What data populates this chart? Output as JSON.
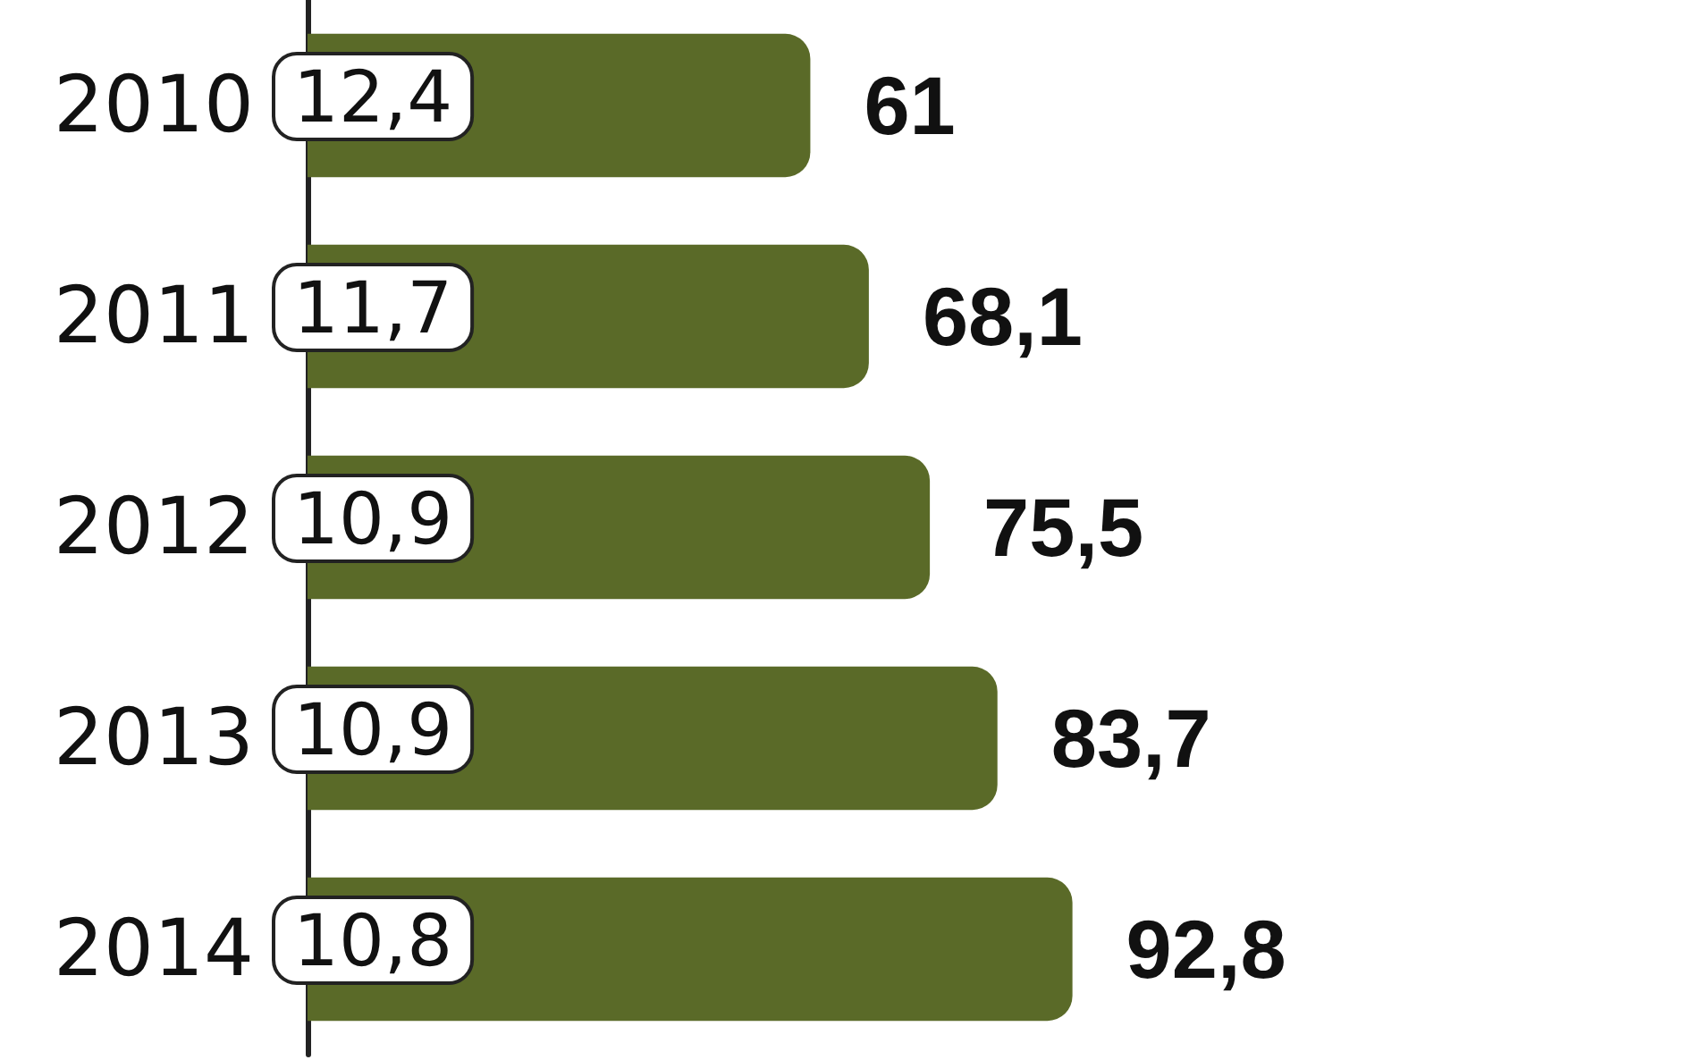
{
  "chart_data": {
    "type": "bar",
    "orientation": "horizontal",
    "categories": [
      "2010",
      "2011",
      "2012",
      "2013",
      "2014"
    ],
    "values": [
      61,
      68.1,
      75.5,
      83.7,
      92.8
    ],
    "color": "#5a6a28",
    "value_labels": [
      "61",
      "68,1",
      "75,5",
      "83,7",
      "92,8"
    ],
    "annotations": [
      "12,4",
      "11,7",
      "10,9",
      "10,9",
      "10,8"
    ]
  }
}
